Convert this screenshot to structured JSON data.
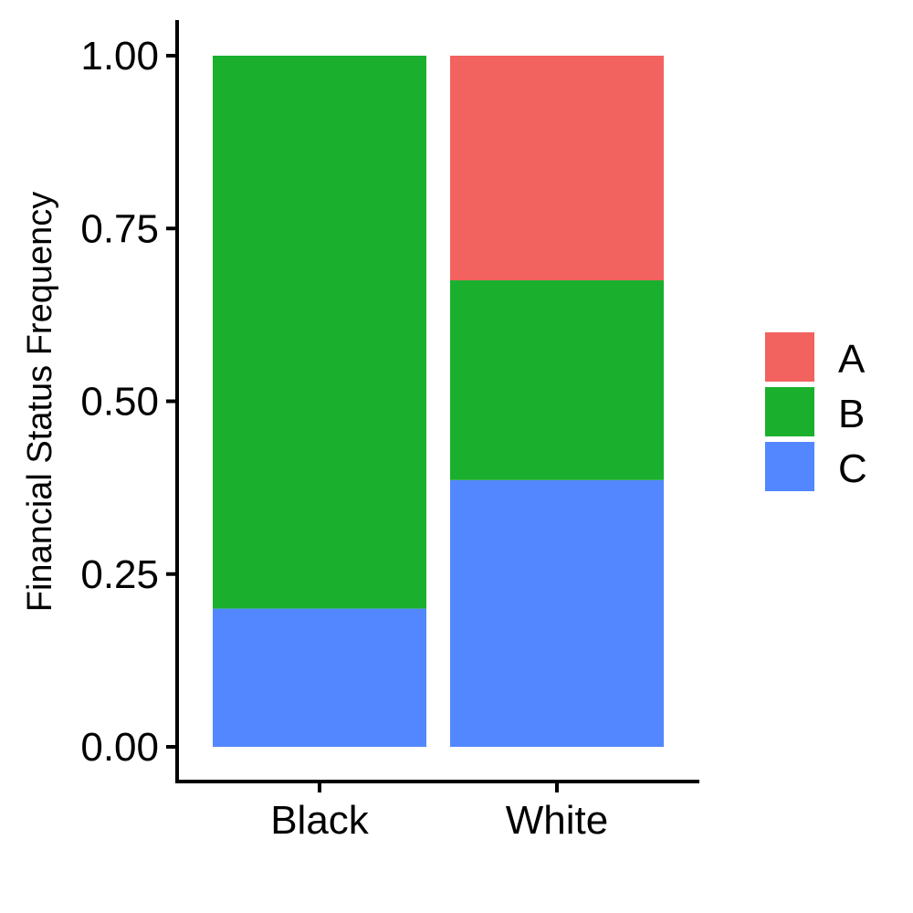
{
  "chart_data": {
    "type": "bar",
    "stacked": true,
    "categories": [
      "Black",
      "White"
    ],
    "series": [
      {
        "name": "A",
        "color": "#F2625E",
        "values": [
          0.0,
          0.325
        ]
      },
      {
        "name": "B",
        "color": "#1AB02E",
        "values": [
          0.8,
          0.289
        ]
      },
      {
        "name": "C",
        "color": "#5287FF",
        "values": [
          0.2,
          0.386
        ]
      }
    ],
    "stack_order_bottom_to_top": [
      "C",
      "B",
      "A"
    ],
    "ylabel": "Financial Status Frequency",
    "xlabel": "",
    "ylim": [
      0,
      1
    ],
    "yticks": [
      "0.00",
      "0.25",
      "0.50",
      "0.75",
      "1.00"
    ],
    "ytick_values": [
      0,
      0.25,
      0.5,
      0.75,
      1.0
    ],
    "grid": false,
    "legend": {
      "position": "right",
      "entries": [
        "A",
        "B",
        "C"
      ]
    }
  }
}
